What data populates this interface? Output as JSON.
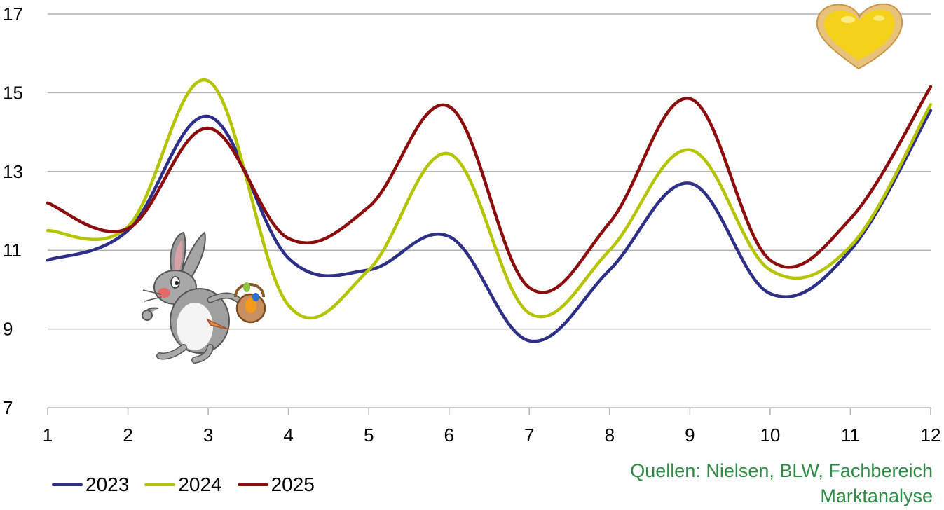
{
  "chart_data": {
    "type": "line",
    "title": "",
    "xlabel": "",
    "ylabel": "",
    "x": [
      1,
      2,
      3,
      4,
      5,
      6,
      7,
      8,
      9,
      10,
      11,
      12
    ],
    "xlim": [
      1,
      12
    ],
    "ylim": [
      7,
      17
    ],
    "yticks": [
      7,
      9,
      11,
      13,
      15,
      17
    ],
    "grid": true,
    "legend_position": "bottom-left",
    "series": [
      {
        "name": "2023",
        "color": "#2e2f86",
        "values": [
          10.75,
          11.5,
          14.4,
          10.8,
          10.5,
          11.35,
          8.7,
          10.5,
          12.7,
          9.9,
          11.0,
          14.55
        ]
      },
      {
        "name": "2024",
        "color": "#b5c400",
        "values": [
          11.5,
          11.6,
          15.3,
          9.6,
          10.5,
          13.45,
          9.4,
          11.0,
          13.55,
          10.5,
          11.1,
          14.7
        ]
      },
      {
        "name": "2025",
        "color": "#8b0d0d",
        "values": [
          12.2,
          11.55,
          14.1,
          11.3,
          12.1,
          14.65,
          10.05,
          11.7,
          14.85,
          10.75,
          11.8,
          15.15
        ]
      }
    ]
  },
  "source_line1": "Quellen: Nielsen, BLW, Fachbereich",
  "source_line2": "Marktanalyse",
  "decorations": {
    "bunny": "easter-bunny-with-basket",
    "heart": "heart-shaped-cookie"
  }
}
